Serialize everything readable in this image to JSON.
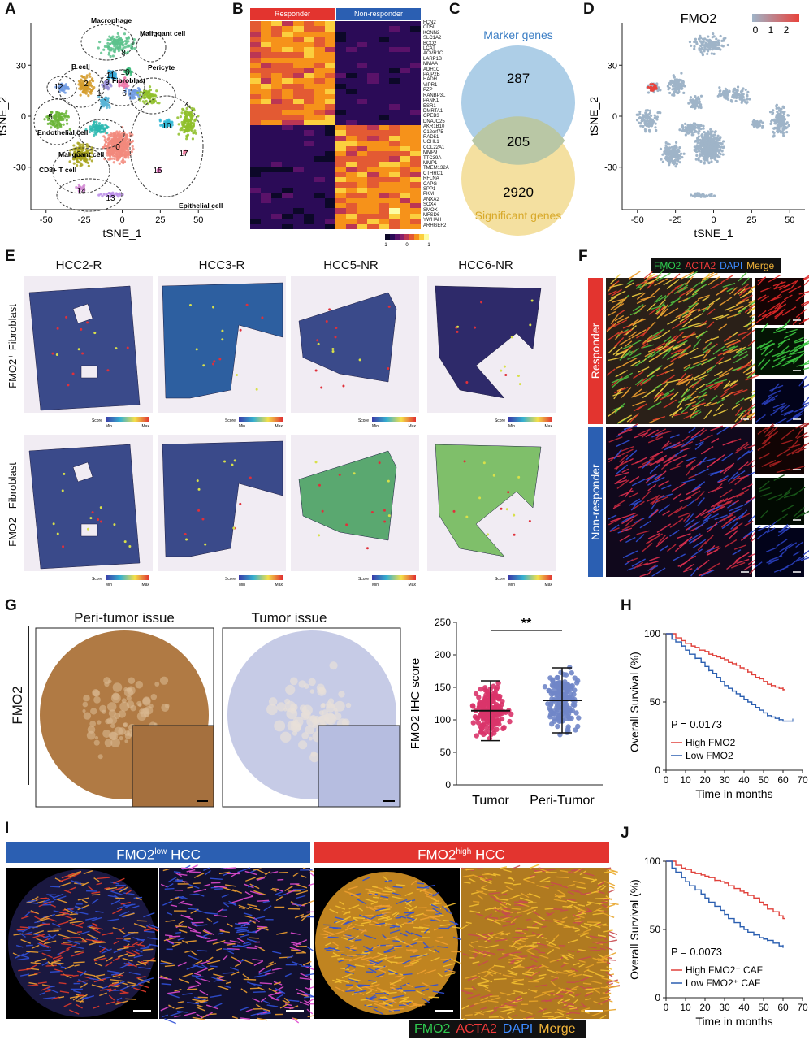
{
  "panels": {
    "A": {
      "label": "A",
      "xlabel": "tSNE_1",
      "ylabel": "tSNE_2",
      "xticks": [
        "-50",
        "-25",
        "0",
        "25",
        "50"
      ],
      "yticks": [
        "30",
        "0",
        "-30"
      ],
      "cell_types": [
        "Macrophage",
        "Malignant cell",
        "B cell",
        "Fibroblast",
        "Pericyte",
        "Endothelial cell",
        "Malignant cell",
        "CD8+ T cell",
        "Epithelial cell"
      ],
      "clusters": [
        "0",
        "1",
        "2",
        "3",
        "4",
        "5",
        "6",
        "7",
        "8",
        "9",
        "10",
        "11",
        "12",
        "13",
        "14",
        "15",
        "16",
        "17"
      ],
      "colors": {
        "c0": "#f28a7c",
        "c1": "#58b4d6",
        "c2": "#d39b2a",
        "c3": "#a8a31d",
        "c4": "#8fbf2a",
        "c5": "#6ab536",
        "c6": "#3dbb7b",
        "c7": "#2cb8b0",
        "c8": "#5cc28c",
        "c9": "#9a8fd8",
        "c10": "#33b9d6",
        "c11": "#33a8d8",
        "c12": "#6f9ae2",
        "c13": "#b98ae8",
        "c14": "#d28ad4",
        "c15": "#e779c4",
        "c16": "#ee78aa",
        "c17": "#f07fa0"
      }
    },
    "B": {
      "label": "B",
      "groups": [
        "Responder",
        "Non-responder"
      ],
      "group_colors": [
        "#e3342f",
        "#2b5fb2"
      ],
      "genes": [
        "FCN2",
        "CD5L",
        "KCNN2",
        "SLC1A2",
        "BCO2",
        "LCAT",
        "ACVR1C",
        "LARP1B",
        "MMAA",
        "ADH1C",
        "PAIP2B",
        "HADH",
        "VIPR1",
        "PZP",
        "RANBP3L",
        "PANK1",
        "ESR1",
        "DMRTA1",
        "CPEB3",
        "DNAJC25",
        "AKR1B10",
        "C12orf75",
        "RAD51",
        "UCHL1",
        "COL22A1",
        "MMP9",
        "TTC39A",
        "MMP1",
        "TMEM132A",
        "CTHRC1",
        "RFLNA",
        "CAPG",
        "SPP1",
        "PKM",
        "ANXA2",
        "SOX4",
        "SMOX",
        "MFSD6",
        "YWHAH",
        "ARHGEF2"
      ],
      "colorbar_ticks": [
        "-1",
        "0",
        "1"
      ]
    },
    "C": {
      "label": "C",
      "sets": [
        "Marker genes",
        "Significant genes"
      ],
      "counts": {
        "marker_only": "287",
        "overlap": "205",
        "significant_only": "2920"
      },
      "colors": {
        "marker": "#a9cbe6",
        "significant": "#f4e0a0",
        "overlap": "#b9c7a5",
        "marker_text": "#3a7dc4",
        "significant_text": "#d8a92a"
      }
    },
    "D": {
      "label": "D",
      "title": "FMO2",
      "xlabel": "tSNE_1",
      "ylabel": "tSNE_2",
      "xticks": [
        "-50",
        "-25",
        "0",
        "25",
        "50"
      ],
      "yticks": [
        "30",
        "0",
        "-30"
      ],
      "colorbar_ticks": [
        "0",
        "1",
        "2"
      ],
      "colors": {
        "low": "#9fb4c8",
        "high": "#e8433c"
      }
    },
    "E": {
      "label": "E",
      "samples": [
        "HCC2-R",
        "HCC3-R",
        "HCC5-NR",
        "HCC6-NR"
      ],
      "rows": [
        "FMO2⁺ Fibroblast",
        "FMO2⁻ Fibroblast"
      ],
      "legend": {
        "title": "Score",
        "min": "Min",
        "max": "Max"
      }
    },
    "F": {
      "label": "F",
      "channels": [
        {
          "name": "FMO2",
          "color": "#2fcb4f"
        },
        {
          "name": "ACTA2",
          "color": "#f03a3a"
        },
        {
          "name": "DAPI",
          "color": "#3d8bff"
        },
        {
          "name": "Merge",
          "color": "#f2b53a"
        }
      ],
      "rows": [
        "Responder",
        "Non-responder"
      ],
      "row_colors": [
        "#e3342f",
        "#2b5fb2"
      ]
    },
    "G": {
      "label": "G",
      "marker": "FMO2",
      "images": [
        "Peri-tumor issue",
        "Tumor issue"
      ],
      "chart_data": {
        "type": "scatter",
        "ylabel": "FMO2 IHC score",
        "categories": [
          "Tumor",
          "Peri-Tumor"
        ],
        "mean": [
          114,
          130
        ],
        "sd": [
          46,
          50
        ],
        "ylim": [
          0,
          250
        ],
        "yticks": [
          "0",
          "50",
          "100",
          "150",
          "200",
          "250"
        ],
        "significance": "**",
        "colors": [
          "#d9346a",
          "#7086c8"
        ]
      }
    },
    "H": {
      "label": "H",
      "chart_data": {
        "type": "line",
        "ylabel": "Overall Survival (%)",
        "xlabel": "Time in months",
        "xticks": [
          "0",
          "10",
          "20",
          "30",
          "40",
          "50",
          "60",
          "70"
        ],
        "yticks": [
          "0",
          "50",
          "100"
        ],
        "pvalue": "P = 0.0173",
        "series": [
          {
            "name": "High FMO2",
            "color": "#e0403a",
            "x": [
              0,
              5,
              8,
              10,
              13,
              15,
              17,
              20,
              22,
              24,
              26,
              28,
              30,
              32,
              34,
              36,
              38,
              40,
              42,
              44,
              46,
              48,
              50,
              52,
              54,
              56,
              58,
              60,
              61
            ],
            "y": [
              100,
              97,
              95,
              93,
              91,
              90,
              88,
              87,
              85,
              84,
              83,
              82,
              81,
              79,
              78,
              77,
              75,
              74,
              72,
              70,
              68,
              67,
              65,
              63,
              62,
              61,
              60,
              59,
              59
            ]
          },
          {
            "name": "Low FMO2",
            "color": "#2a5eb0",
            "x": [
              0,
              3,
              5,
              8,
              10,
              12,
              15,
              18,
              20,
              22,
              24,
              26,
              28,
              30,
              32,
              34,
              36,
              38,
              40,
              42,
              44,
              46,
              48,
              50,
              52,
              54,
              56,
              58,
              60,
              62,
              65
            ],
            "y": [
              100,
              96,
              94,
              91,
              88,
              85,
              82,
              79,
              76,
              73,
              71,
              68,
              65,
              62,
              60,
              58,
              56,
              54,
              52,
              50,
              48,
              46,
              44,
              42,
              40,
              39,
              38,
              37,
              36,
              36,
              36
            ]
          }
        ]
      }
    },
    "I": {
      "label": "I",
      "groups": [
        "FMO2low HCC",
        "FMO2high HCC"
      ],
      "group_base": "FMO2",
      "group_sups": [
        "low",
        "high"
      ],
      "group_suffix": " HCC",
      "group_colors": [
        "#2b5fb2",
        "#e3342f"
      ],
      "channels": [
        {
          "name": "FMO2",
          "color": "#2fcb4f"
        },
        {
          "name": "ACTA2",
          "color": "#f03a3a"
        },
        {
          "name": "DAPI",
          "color": "#3d8bff"
        },
        {
          "name": "Merge",
          "color": "#f2b53a"
        }
      ]
    },
    "J": {
      "label": "J",
      "chart_data": {
        "type": "line",
        "ylabel": "Overall Survival (%)",
        "xlabel": "Time in months",
        "xticks": [
          "0",
          "10",
          "20",
          "30",
          "40",
          "50",
          "60",
          "70"
        ],
        "yticks": [
          "0",
          "50",
          "100"
        ],
        "pvalue": "P = 0.0073",
        "series": [
          {
            "name": "High FMO2⁺ CAF",
            "color": "#e0403a",
            "x": [
              0,
              5,
              8,
              10,
              13,
              15,
              18,
              20,
              22,
              25,
              28,
              30,
              32,
              35,
              38,
              40,
              42,
              45,
              48,
              50,
              52,
              55,
              58,
              60,
              61
            ],
            "y": [
              100,
              97,
              95,
              94,
              92,
              91,
              90,
              89,
              88,
              86,
              85,
              84,
              82,
              80,
              78,
              77,
              75,
              73,
              70,
              68,
              65,
              63,
              60,
              58,
              58
            ]
          },
          {
            "name": "Low FMO2⁺ CAF",
            "color": "#2a5eb0",
            "x": [
              0,
              3,
              5,
              8,
              10,
              12,
              15,
              18,
              20,
              22,
              25,
              28,
              30,
              32,
              35,
              38,
              40,
              42,
              45,
              48,
              50,
              52,
              55,
              58,
              60
            ],
            "y": [
              100,
              95,
              92,
              88,
              85,
              82,
              79,
              76,
              73,
              70,
              67,
              64,
              61,
              58,
              55,
              52,
              50,
              48,
              46,
              44,
              43,
              42,
              40,
              38,
              37
            ]
          }
        ]
      }
    }
  }
}
